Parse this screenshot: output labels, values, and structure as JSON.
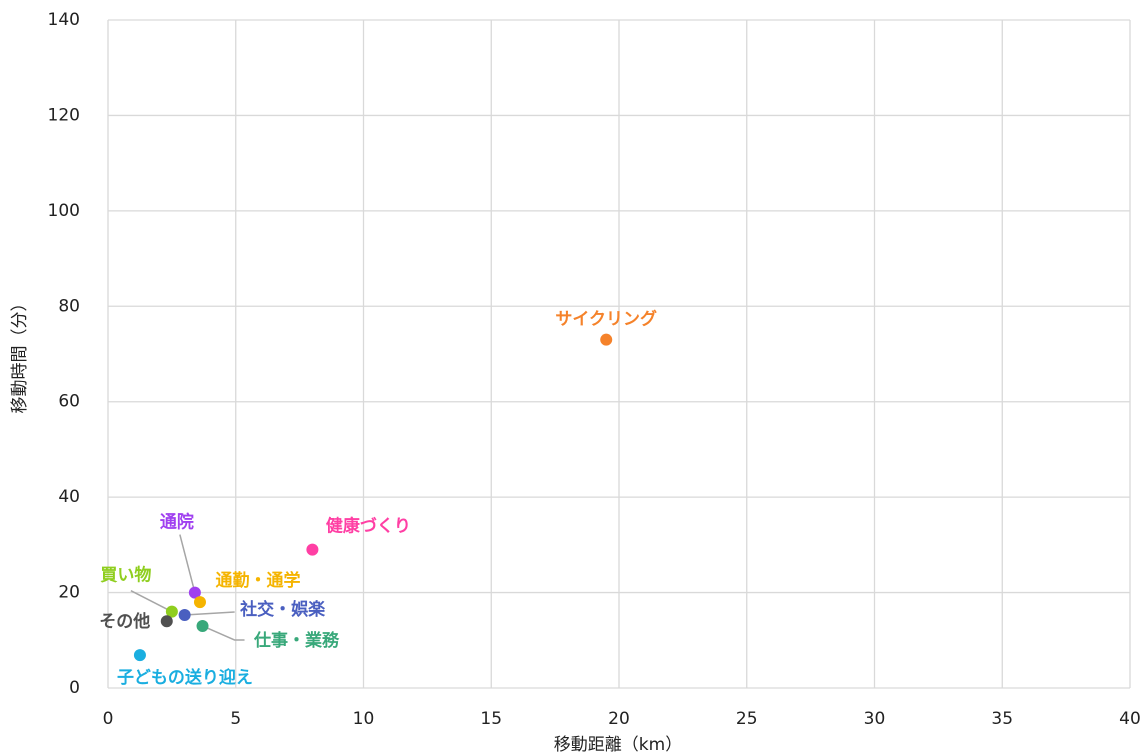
{
  "chart_data": {
    "type": "scatter",
    "xlabel": "移動距離（km）",
    "ylabel": "移動時間（分）",
    "xlim": [
      0,
      40
    ],
    "xticks": [
      0,
      5,
      10,
      15,
      20,
      25,
      30,
      35,
      40
    ],
    "ylim": [
      0,
      140
    ],
    "yticks": [
      0,
      20,
      40,
      60,
      80,
      100,
      120,
      140
    ],
    "grid": true,
    "series": [
      {
        "name": "サイクリング",
        "color": "#f5822a",
        "x": [
          19.5
        ],
        "values": [
          73
        ]
      },
      {
        "name": "健康づくり",
        "color": "#ff3fa4",
        "x": [
          8
        ],
        "values": [
          29
        ]
      },
      {
        "name": "通院",
        "color": "#a040f0",
        "x": [
          3.4
        ],
        "values": [
          20
        ]
      },
      {
        "name": "通勤・通学",
        "color": "#f5b400",
        "x": [
          3.6
        ],
        "values": [
          18
        ]
      },
      {
        "name": "買い物",
        "color": "#8fce1e",
        "x": [
          2.5
        ],
        "values": [
          16
        ]
      },
      {
        "name": "社交・娯楽",
        "color": "#4a5fc0",
        "x": [
          3.0
        ],
        "values": [
          15.3
        ]
      },
      {
        "name": "その他",
        "color": "#505050",
        "x": [
          2.3
        ],
        "values": [
          14
        ]
      },
      {
        "name": "仕事・業務",
        "color": "#38a87a",
        "x": [
          3.7
        ],
        "values": [
          13
        ]
      },
      {
        "name": "子どもの送り迎え",
        "color": "#1aaee0",
        "x": [
          1.25
        ],
        "values": [
          6.9
        ]
      }
    ]
  }
}
